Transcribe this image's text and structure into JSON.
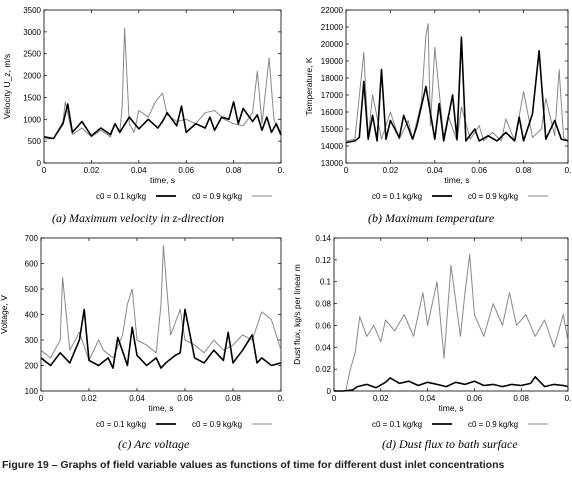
{
  "figure_caption": "Figure 19 – Graphs of field variable values as functions of time for different dust inlet concentrations",
  "legend_entries": [
    "c0 = 0.1 kg/kg",
    "c0 = 0.9 kg/kg"
  ],
  "captions": [
    "(a) Maximum velocity in z-direction",
    "(b) Maximum temperature",
    "(c) Arc voltage",
    "(d) Dust flux to bath surface"
  ],
  "chart_data": [
    {
      "type": "line",
      "caption": "(a) Maximum velocity in z-direction",
      "xlabel": "time, s",
      "ylabel": "Velocity U_z, m/s",
      "xlim": [
        0,
        0.1
      ],
      "ylim": [
        0,
        3500
      ],
      "xticks": [
        "0",
        "0.02",
        "0.04",
        "0.06",
        "0.08",
        "0."
      ],
      "yticks": [
        "0",
        "500",
        "1000",
        "1500",
        "2000",
        "2500",
        "3000",
        "3500"
      ],
      "grid": false,
      "legend": "bottom",
      "series": [
        {
          "name": "c0 = 0.1 kg/kg",
          "color": "#000000",
          "x": [
            0.0,
            0.004,
            0.008,
            0.01,
            0.012,
            0.016,
            0.02,
            0.024,
            0.028,
            0.03,
            0.032,
            0.036,
            0.04,
            0.044,
            0.048,
            0.05,
            0.052,
            0.056,
            0.058,
            0.06,
            0.064,
            0.068,
            0.07,
            0.072,
            0.075,
            0.078,
            0.08,
            0.082,
            0.084,
            0.088,
            0.09,
            0.092,
            0.094,
            0.096,
            0.098,
            0.1
          ],
          "y": [
            600,
            560,
            900,
            1350,
            700,
            950,
            620,
            800,
            650,
            900,
            700,
            1050,
            780,
            1000,
            800,
            950,
            1150,
            850,
            1300,
            700,
            900,
            800,
            1050,
            750,
            1050,
            1000,
            1400,
            900,
            1250,
            950,
            1100,
            750,
            1050,
            700,
            900,
            650
          ]
        },
        {
          "name": "c0 = 0.9 kg/kg",
          "color": "#888888",
          "x": [
            0.0,
            0.004,
            0.008,
            0.009,
            0.012,
            0.016,
            0.02,
            0.024,
            0.028,
            0.03,
            0.032,
            0.033,
            0.034,
            0.036,
            0.038,
            0.04,
            0.044,
            0.047,
            0.05,
            0.052,
            0.056,
            0.06,
            0.064,
            0.068,
            0.072,
            0.076,
            0.08,
            0.084,
            0.088,
            0.09,
            0.092,
            0.095,
            0.097,
            0.1
          ],
          "y": [
            550,
            560,
            950,
            1400,
            650,
            800,
            600,
            750,
            600,
            900,
            700,
            1300,
            3080,
            900,
            700,
            1200,
            1050,
            1400,
            1600,
            1100,
            950,
            1000,
            900,
            1150,
            1200,
            1000,
            900,
            850,
            1150,
            2100,
            900,
            2400,
            1000,
            600
          ]
        }
      ]
    },
    {
      "type": "line",
      "caption": "(b) Maximum temperature",
      "xlabel": "time, s",
      "ylabel": "Temperature, K",
      "xlim": [
        0,
        0.1
      ],
      "ylim": [
        13000,
        22000
      ],
      "xticks": [
        "0",
        "0.02",
        "0.04",
        "0.06",
        "0.08",
        "0."
      ],
      "yticks": [
        "13000",
        "14000",
        "15000",
        "16000",
        "17000",
        "18000",
        "19000",
        "20000",
        "21000",
        "22000"
      ],
      "grid": false,
      "legend": "bottom",
      "series": [
        {
          "name": "c0 = 0.1 kg/kg",
          "color": "#000000",
          "x": [
            0.0,
            0.004,
            0.006,
            0.008,
            0.01,
            0.012,
            0.014,
            0.016,
            0.018,
            0.02,
            0.024,
            0.026,
            0.03,
            0.032,
            0.036,
            0.04,
            0.042,
            0.044,
            0.048,
            0.05,
            0.052,
            0.054,
            0.058,
            0.06,
            0.064,
            0.068,
            0.072,
            0.076,
            0.078,
            0.08,
            0.084,
            0.087,
            0.09,
            0.094,
            0.097,
            0.1
          ],
          "y": [
            14200,
            14300,
            14500,
            17800,
            14400,
            15800,
            14300,
            18500,
            14400,
            15500,
            14500,
            15800,
            14400,
            15200,
            17500,
            14400,
            16500,
            14300,
            17000,
            14400,
            20400,
            14300,
            15000,
            14300,
            14600,
            14300,
            14800,
            14300,
            15700,
            14300,
            15900,
            19600,
            14400,
            15500,
            14400,
            14300
          ]
        },
        {
          "name": "c0 = 0.9 kg/kg",
          "color": "#888888",
          "x": [
            0.0,
            0.004,
            0.008,
            0.01,
            0.012,
            0.016,
            0.02,
            0.024,
            0.028,
            0.03,
            0.034,
            0.036,
            0.037,
            0.038,
            0.04,
            0.044,
            0.046,
            0.05,
            0.052,
            0.056,
            0.06,
            0.062,
            0.066,
            0.07,
            0.072,
            0.076,
            0.08,
            0.084,
            0.088,
            0.09,
            0.094,
            0.096,
            0.098,
            0.1
          ],
          "y": [
            14300,
            14400,
            19500,
            14500,
            17000,
            14400,
            16000,
            14400,
            15500,
            14400,
            16600,
            20500,
            21200,
            15200,
            19800,
            14500,
            15800,
            14300,
            16300,
            14400,
            15200,
            14300,
            14800,
            14300,
            15600,
            14300,
            17200,
            14500,
            15000,
            16800,
            14600,
            18500,
            14500,
            14300
          ]
        }
      ]
    },
    {
      "type": "line",
      "caption": "(c) Arc voltage",
      "xlabel": "time, s",
      "ylabel": "Voltage, V",
      "xlim": [
        0,
        0.1
      ],
      "ylim": [
        100,
        700
      ],
      "xticks": [
        "0",
        "0.02",
        "0.04",
        "0.06",
        "0.08",
        "0."
      ],
      "yticks": [
        "100",
        "200",
        "300",
        "400",
        "500",
        "600",
        "700"
      ],
      "grid": false,
      "legend": "bottom",
      "series": [
        {
          "name": "c0 = 0.1 kg/kg",
          "color": "#000000",
          "x": [
            0.0,
            0.004,
            0.008,
            0.012,
            0.016,
            0.018,
            0.02,
            0.024,
            0.028,
            0.03,
            0.032,
            0.036,
            0.038,
            0.04,
            0.044,
            0.048,
            0.05,
            0.052,
            0.056,
            0.058,
            0.06,
            0.064,
            0.068,
            0.072,
            0.076,
            0.078,
            0.08,
            0.084,
            0.088,
            0.09,
            0.092,
            0.096,
            0.1
          ],
          "y": [
            230,
            200,
            250,
            210,
            300,
            420,
            220,
            200,
            230,
            190,
            310,
            200,
            350,
            240,
            200,
            230,
            190,
            210,
            240,
            250,
            420,
            230,
            210,
            260,
            220,
            330,
            210,
            260,
            320,
            210,
            230,
            200,
            210
          ]
        },
        {
          "name": "c0 = 0.9 kg/kg",
          "color": "#888888",
          "x": [
            0.0,
            0.004,
            0.008,
            0.009,
            0.012,
            0.016,
            0.02,
            0.024,
            0.026,
            0.03,
            0.034,
            0.036,
            0.038,
            0.04,
            0.044,
            0.048,
            0.05,
            0.051,
            0.054,
            0.058,
            0.06,
            0.064,
            0.068,
            0.072,
            0.076,
            0.08,
            0.084,
            0.088,
            0.092,
            0.096,
            0.1
          ],
          "y": [
            260,
            230,
            300,
            545,
            260,
            330,
            220,
            300,
            260,
            230,
            320,
            440,
            500,
            300,
            280,
            250,
            440,
            670,
            320,
            420,
            300,
            280,
            250,
            300,
            260,
            280,
            320,
            300,
            410,
            380,
            260
          ]
        }
      ]
    },
    {
      "type": "line",
      "caption": "(d) Dust flux to bath surface",
      "xlabel": "time, s",
      "ylabel": "Dust flux, kg/s per linear m",
      "xlim": [
        0,
        0.1
      ],
      "ylim": [
        0,
        0.14
      ],
      "xticks": [
        "0",
        "0.02",
        "0.04",
        "0.06",
        "0.08",
        "0."
      ],
      "yticks": [
        "0",
        "0.02",
        "0.04",
        "0.06",
        "0.08",
        "0.1",
        "0.12",
        "0.14"
      ],
      "grid": false,
      "legend": "bottom",
      "series": [
        {
          "name": "c0 = 0.1 kg/kg",
          "color": "#000000",
          "x": [
            0.0,
            0.004,
            0.008,
            0.01,
            0.014,
            0.018,
            0.022,
            0.024,
            0.028,
            0.032,
            0.036,
            0.04,
            0.044,
            0.048,
            0.052,
            0.056,
            0.06,
            0.064,
            0.068,
            0.072,
            0.076,
            0.08,
            0.084,
            0.086,
            0.09,
            0.094,
            0.098,
            0.1
          ],
          "y": [
            0,
            0,
            0.001,
            0.004,
            0.006,
            0.003,
            0.008,
            0.012,
            0.007,
            0.009,
            0.005,
            0.008,
            0.006,
            0.004,
            0.008,
            0.006,
            0.009,
            0.005,
            0.006,
            0.004,
            0.006,
            0.005,
            0.007,
            0.013,
            0.004,
            0.006,
            0.005,
            0.004
          ]
        },
        {
          "name": "c0 = 0.9 kg/kg",
          "color": "#888888",
          "x": [
            0.0,
            0.005,
            0.007,
            0.009,
            0.011,
            0.014,
            0.017,
            0.02,
            0.022,
            0.026,
            0.03,
            0.034,
            0.038,
            0.04,
            0.044,
            0.047,
            0.05,
            0.054,
            0.056,
            0.058,
            0.06,
            0.064,
            0.068,
            0.072,
            0.075,
            0.078,
            0.082,
            0.086,
            0.09,
            0.094,
            0.098,
            0.1
          ],
          "y": [
            0,
            0,
            0.02,
            0.035,
            0.068,
            0.05,
            0.06,
            0.045,
            0.065,
            0.055,
            0.07,
            0.05,
            0.09,
            0.06,
            0.1,
            0.03,
            0.115,
            0.05,
            0.09,
            0.125,
            0.07,
            0.05,
            0.08,
            0.06,
            0.09,
            0.06,
            0.07,
            0.05,
            0.065,
            0.04,
            0.07,
            0.045
          ]
        }
      ]
    }
  ]
}
